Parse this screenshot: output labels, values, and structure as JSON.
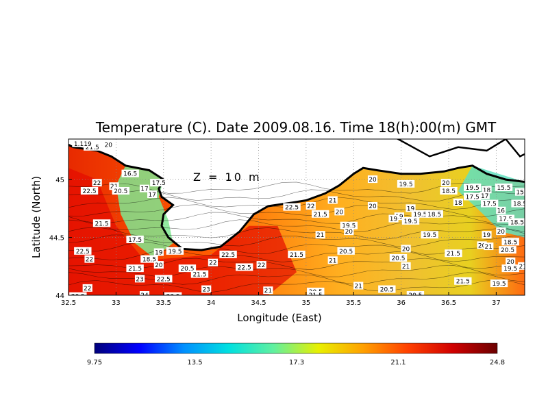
{
  "chart_data": {
    "type": "heatmap",
    "title": "Temperature (C). Date 2009.08.16. Time 18(h):00(m) GMT",
    "xlabel": "Longitude (East)",
    "ylabel": "Latitude (North)",
    "annotation": "Z = 10 m",
    "xlim": [
      32.5,
      37.3
    ],
    "ylim": [
      44.0,
      45.35
    ],
    "xticks": [
      "32.5",
      "33",
      "33.5",
      "34",
      "34.5",
      "35",
      "35.5",
      "36",
      "36.5",
      "37"
    ],
    "xtick_values": [
      32.5,
      33,
      33.5,
      34,
      34.5,
      35,
      35.5,
      36,
      36.5,
      37
    ],
    "yticks": [
      "44",
      "44.5",
      "45"
    ],
    "ytick_values": [
      44,
      44.5,
      45
    ],
    "grid": true,
    "colorbar": {
      "min": 9.75,
      "max": 24.8,
      "tick_labels": [
        "9.75",
        "13.5",
        "17.3",
        "21.1",
        "24.8"
      ],
      "tick_values": [
        9.75,
        13.5,
        17.3,
        21.1,
        24.8
      ],
      "colors": [
        "#00007a",
        "#0000ff",
        "#0090ff",
        "#00e0e0",
        "#60f0a0",
        "#e8f000",
        "#ffa000",
        "#ff4000",
        "#d00000",
        "#6a0000"
      ]
    },
    "contour_labels": [
      {
        "lon": 32.75,
        "lat": 45.28,
        "text": "21.5"
      },
      {
        "lon": 32.65,
        "lat": 45.31,
        "text": "1.119"
      },
      {
        "lon": 32.92,
        "lat": 45.3,
        "text": "20"
      },
      {
        "lon": 33.15,
        "lat": 45.05,
        "text": "16.5"
      },
      {
        "lon": 32.8,
        "lat": 44.97,
        "text": "22"
      },
      {
        "lon": 32.72,
        "lat": 44.9,
        "text": "22.5"
      },
      {
        "lon": 32.98,
        "lat": 44.94,
        "text": "21"
      },
      {
        "lon": 33.05,
        "lat": 44.9,
        "text": "20.5"
      },
      {
        "lon": 33.45,
        "lat": 44.97,
        "text": "17.5"
      },
      {
        "lon": 33.3,
        "lat": 44.92,
        "text": "17"
      },
      {
        "lon": 33.38,
        "lat": 44.87,
        "text": "17"
      },
      {
        "lon": 32.85,
        "lat": 44.62,
        "text": "21.5"
      },
      {
        "lon": 33.2,
        "lat": 44.48,
        "text": "17.5"
      },
      {
        "lon": 32.65,
        "lat": 44.38,
        "text": "22.5"
      },
      {
        "lon": 32.72,
        "lat": 44.31,
        "text": "22"
      },
      {
        "lon": 33.45,
        "lat": 44.37,
        "text": "19"
      },
      {
        "lon": 33.62,
        "lat": 44.38,
        "text": "19.5"
      },
      {
        "lon": 33.35,
        "lat": 44.31,
        "text": "18.5"
      },
      {
        "lon": 33.45,
        "lat": 44.26,
        "text": "20"
      },
      {
        "lon": 33.2,
        "lat": 44.23,
        "text": "21.5"
      },
      {
        "lon": 33.75,
        "lat": 44.23,
        "text": "20.5"
      },
      {
        "lon": 33.88,
        "lat": 44.18,
        "text": "21.5"
      },
      {
        "lon": 34.02,
        "lat": 44.28,
        "text": "22"
      },
      {
        "lon": 34.18,
        "lat": 44.35,
        "text": "22.5"
      },
      {
        "lon": 34.35,
        "lat": 44.24,
        "text": "22.5"
      },
      {
        "lon": 34.53,
        "lat": 44.26,
        "text": "22"
      },
      {
        "lon": 33.25,
        "lat": 44.14,
        "text": "23"
      },
      {
        "lon": 33.5,
        "lat": 44.14,
        "text": "22.5"
      },
      {
        "lon": 33.95,
        "lat": 44.05,
        "text": "23"
      },
      {
        "lon": 32.7,
        "lat": 44.06,
        "text": "22"
      },
      {
        "lon": 32.6,
        "lat": 43.99,
        "text": "20.5"
      },
      {
        "lon": 33.3,
        "lat": 44.0,
        "text": "24"
      },
      {
        "lon": 33.6,
        "lat": 43.99,
        "text": "23.5"
      },
      {
        "lon": 34.6,
        "lat": 44.04,
        "text": "21"
      },
      {
        "lon": 34.85,
        "lat": 44.76,
        "text": "22.5"
      },
      {
        "lon": 35.05,
        "lat": 44.77,
        "text": "22"
      },
      {
        "lon": 35.15,
        "lat": 44.7,
        "text": "21.5"
      },
      {
        "lon": 35.15,
        "lat": 44.52,
        "text": "21"
      },
      {
        "lon": 34.9,
        "lat": 44.35,
        "text": "21.5"
      },
      {
        "lon": 35.28,
        "lat": 44.82,
        "text": "21"
      },
      {
        "lon": 35.35,
        "lat": 44.72,
        "text": "20"
      },
      {
        "lon": 35.45,
        "lat": 44.6,
        "text": "19.5"
      },
      {
        "lon": 35.45,
        "lat": 44.55,
        "text": "20"
      },
      {
        "lon": 35.42,
        "lat": 44.38,
        "text": "20.5"
      },
      {
        "lon": 35.28,
        "lat": 44.3,
        "text": "21"
      },
      {
        "lon": 35.7,
        "lat": 44.77,
        "text": "20"
      },
      {
        "lon": 35.7,
        "lat": 45.0,
        "text": "20"
      },
      {
        "lon": 35.98,
        "lat": 44.68,
        "text": "19"
      },
      {
        "lon": 35.92,
        "lat": 44.66,
        "text": "19"
      },
      {
        "lon": 36.1,
        "lat": 44.75,
        "text": "19"
      },
      {
        "lon": 36.2,
        "lat": 44.7,
        "text": "19.5"
      },
      {
        "lon": 36.35,
        "lat": 44.7,
        "text": "18.5"
      },
      {
        "lon": 36.1,
        "lat": 44.64,
        "text": "19.5"
      },
      {
        "lon": 36.3,
        "lat": 44.52,
        "text": "19.5"
      },
      {
        "lon": 36.05,
        "lat": 44.4,
        "text": "20"
      },
      {
        "lon": 35.97,
        "lat": 44.32,
        "text": "20.5"
      },
      {
        "lon": 36.05,
        "lat": 44.25,
        "text": "21"
      },
      {
        "lon": 36.55,
        "lat": 44.36,
        "text": "21.5"
      },
      {
        "lon": 36.05,
        "lat": 44.96,
        "text": "19.5"
      },
      {
        "lon": 36.47,
        "lat": 44.97,
        "text": "20"
      },
      {
        "lon": 36.5,
        "lat": 44.9,
        "text": "18.5"
      },
      {
        "lon": 36.75,
        "lat": 44.93,
        "text": "19.5"
      },
      {
        "lon": 36.9,
        "lat": 44.91,
        "text": "18"
      },
      {
        "lon": 36.75,
        "lat": 44.85,
        "text": "17.5"
      },
      {
        "lon": 36.88,
        "lat": 44.86,
        "text": "17"
      },
      {
        "lon": 36.6,
        "lat": 44.8,
        "text": "18"
      },
      {
        "lon": 36.93,
        "lat": 44.79,
        "text": "17.5"
      },
      {
        "lon": 37.08,
        "lat": 44.93,
        "text": "15.5"
      },
      {
        "lon": 37.25,
        "lat": 44.89,
        "text": "15"
      },
      {
        "lon": 37.25,
        "lat": 44.79,
        "text": "18.5"
      },
      {
        "lon": 37.05,
        "lat": 44.73,
        "text": "16"
      },
      {
        "lon": 37.1,
        "lat": 44.66,
        "text": "17.5"
      },
      {
        "lon": 37.22,
        "lat": 44.63,
        "text": "18.5"
      },
      {
        "lon": 37.05,
        "lat": 44.55,
        "text": "20"
      },
      {
        "lon": 36.9,
        "lat": 44.52,
        "text": "19"
      },
      {
        "lon": 37.15,
        "lat": 44.46,
        "text": "18.5"
      },
      {
        "lon": 36.85,
        "lat": 44.43,
        "text": "20"
      },
      {
        "lon": 36.92,
        "lat": 44.42,
        "text": "21"
      },
      {
        "lon": 37.12,
        "lat": 44.39,
        "text": "20.5"
      },
      {
        "lon": 37.15,
        "lat": 44.29,
        "text": "20"
      },
      {
        "lon": 37.15,
        "lat": 44.23,
        "text": "19.5"
      },
      {
        "lon": 37.28,
        "lat": 44.25,
        "text": "21"
      },
      {
        "lon": 36.65,
        "lat": 44.12,
        "text": "21.5"
      },
      {
        "lon": 37.03,
        "lat": 44.1,
        "text": "19.5"
      },
      {
        "lon": 35.55,
        "lat": 44.08,
        "text": "21"
      },
      {
        "lon": 35.85,
        "lat": 44.05,
        "text": "20.5"
      },
      {
        "lon": 35.1,
        "lat": 44.03,
        "text": "20.5"
      },
      {
        "lon": 35.1,
        "lat": 44.0,
        "text": "21.5"
      },
      {
        "lon": 36.15,
        "lat": 44.0,
        "text": "20.5"
      }
    ]
  }
}
